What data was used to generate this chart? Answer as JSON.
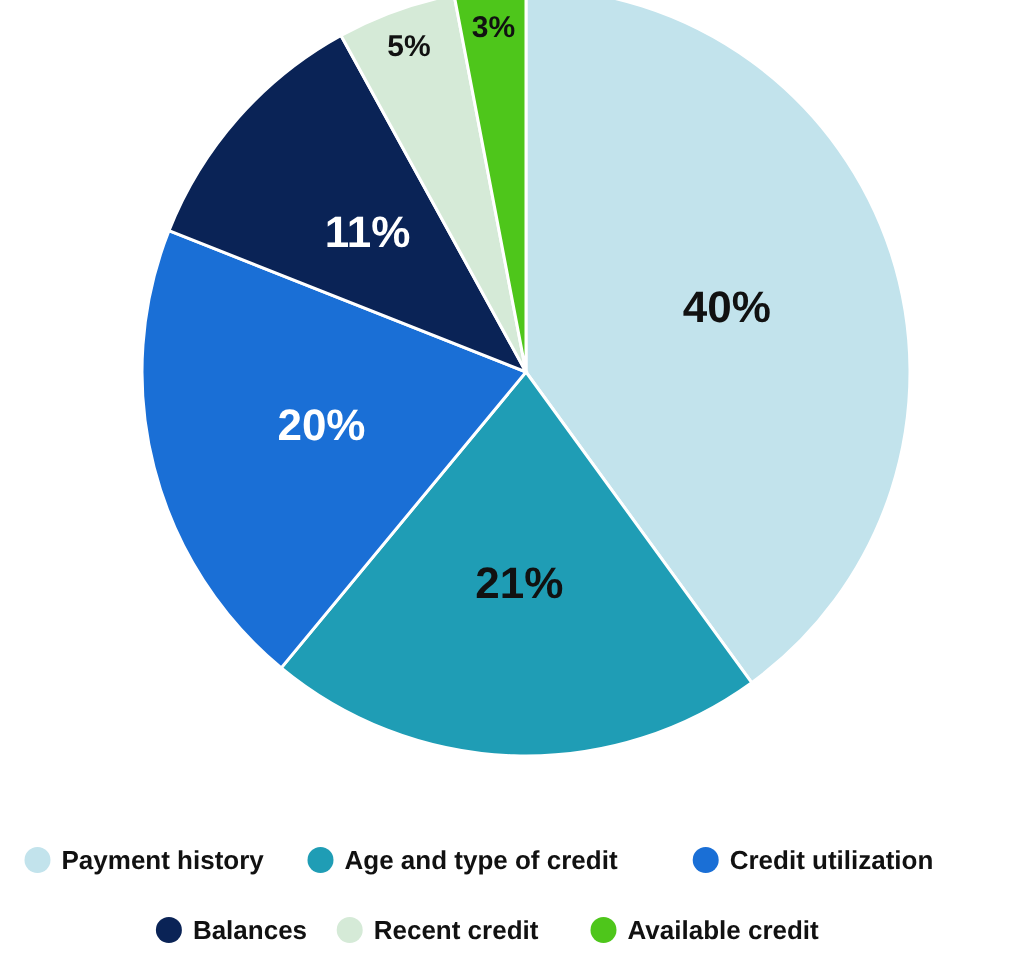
{
  "chart_data": {
    "type": "pie",
    "categories": [
      "Payment history",
      "Age and type of credit",
      "Credit utilization",
      "Balances",
      "Recent credit",
      "Available credit"
    ],
    "values": [
      40,
      21,
      20,
      11,
      5,
      3
    ],
    "colors": [
      "#c2e3ec",
      "#1f9db5",
      "#1a6fd6",
      "#0a2356",
      "#d5ead7",
      "#4ec61b"
    ],
    "value_labels": [
      "40%",
      "21%",
      "20%",
      "11%",
      "5%",
      "3%"
    ],
    "legend": "bottom"
  }
}
